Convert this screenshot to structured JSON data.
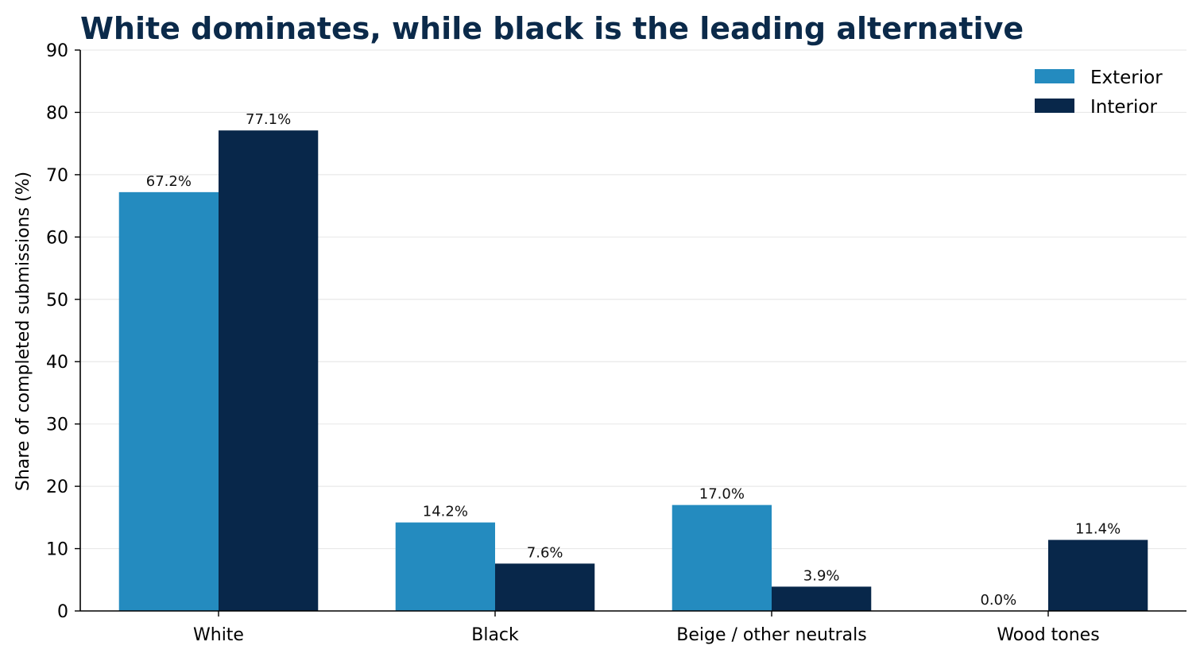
{
  "chart_data": {
    "type": "bar",
    "title": "White dominates, while black is the leading alternative",
    "xlabel": "",
    "ylabel": "Share of completed submissions (%)",
    "categories": [
      "White",
      "Black",
      "Beige / other neutrals",
      "Wood tones"
    ],
    "series": [
      {
        "name": "Exterior",
        "values": [
          67.2,
          14.2,
          17.0,
          0.0
        ],
        "labels": [
          "67.2%",
          "14.2%",
          "17.0%",
          "0.0%"
        ]
      },
      {
        "name": "Interior",
        "values": [
          77.1,
          7.6,
          3.9,
          11.4
        ],
        "labels": [
          "77.1%",
          "7.6%",
          "3.9%",
          "11.4%"
        ]
      }
    ],
    "ylim": [
      0,
      90
    ],
    "yticks": [
      0,
      10,
      20,
      30,
      40,
      50,
      60,
      70,
      80,
      90
    ],
    "grid": "horizontal",
    "legend_position": "top-right",
    "colors": {
      "Exterior": "#248bbf",
      "Interior": "#08274a",
      "title": "#0b2a4a"
    }
  }
}
